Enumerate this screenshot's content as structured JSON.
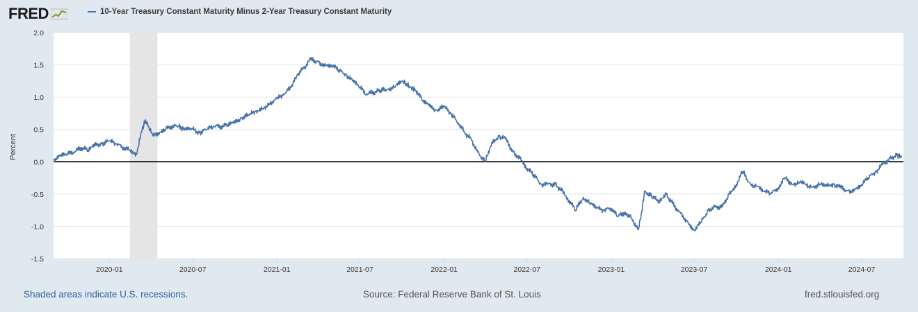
{
  "header": {
    "logo_text": "FRED",
    "series_title": "10-Year Treasury Constant Maturity Minus 2-Year Treasury Constant Maturity",
    "series_color": "#4572a7"
  },
  "footer": {
    "recession_note": "Shaded areas indicate U.S. recessions.",
    "source": "Source: Federal Reserve Bank of St. Louis",
    "site": "fred.stlouisfed.org"
  },
  "chart_data": {
    "type": "line",
    "title": "",
    "xlabel": "",
    "ylabel": "Percent",
    "ylim": [
      -1.5,
      2.0
    ],
    "yticks": [
      2.0,
      1.5,
      1.0,
      0.5,
      0.0,
      -0.5,
      -1.0,
      -1.5
    ],
    "ytick_labels": [
      "2.0",
      "1.5",
      "1.0",
      "0.5",
      "0.0",
      "-0.5",
      "-1.0",
      "-1.5"
    ],
    "xlim": [
      "2019-09-01",
      "2024-09-30"
    ],
    "xticks": [
      "2020-01-01",
      "2020-07-01",
      "2021-01-01",
      "2021-07-01",
      "2022-01-01",
      "2022-07-01",
      "2023-01-01",
      "2023-07-01",
      "2024-01-01",
      "2024-07-01"
    ],
    "xtick_labels": [
      "2020-01",
      "2020-07",
      "2021-01",
      "2021-07",
      "2022-01",
      "2022-07",
      "2023-01",
      "2023-07",
      "2024-01",
      "2024-07"
    ],
    "grid": "horizontal",
    "zero_line": true,
    "line_color": "#4572a7",
    "recession_shading": [
      {
        "start": "2020-02-15",
        "end": "2020-04-15"
      }
    ],
    "series": [
      {
        "x": [
          "2019-09-01",
          "2019-09-15",
          "2019-10-01",
          "2019-10-15",
          "2019-11-01",
          "2019-11-15",
          "2019-12-01",
          "2019-12-15",
          "2020-01-01",
          "2020-01-15",
          "2020-02-01",
          "2020-02-15",
          "2020-03-01",
          "2020-03-10",
          "2020-03-20",
          "2020-04-01",
          "2020-04-15",
          "2020-05-01",
          "2020-05-15",
          "2020-06-01",
          "2020-06-10",
          "2020-06-20",
          "2020-07-01",
          "2020-07-15",
          "2020-08-01",
          "2020-08-15",
          "2020-09-01",
          "2020-09-15",
          "2020-10-01",
          "2020-10-15",
          "2020-11-01",
          "2020-11-15",
          "2020-12-01",
          "2020-12-15",
          "2021-01-01",
          "2021-01-15",
          "2021-02-01",
          "2021-02-15",
          "2021-03-01",
          "2021-03-15",
          "2021-04-01",
          "2021-04-15",
          "2021-05-01",
          "2021-05-15",
          "2021-06-01",
          "2021-06-15",
          "2021-07-01",
          "2021-07-15",
          "2021-08-01",
          "2021-08-15",
          "2021-09-01",
          "2021-09-15",
          "2021-10-01",
          "2021-10-20",
          "2021-11-01",
          "2021-11-15",
          "2021-12-01",
          "2021-12-15",
          "2022-01-01",
          "2022-01-15",
          "2022-02-01",
          "2022-02-15",
          "2022-03-01",
          "2022-03-15",
          "2022-04-01",
          "2022-04-15",
          "2022-05-01",
          "2022-05-15",
          "2022-06-01",
          "2022-06-15",
          "2022-07-01",
          "2022-07-15",
          "2022-08-01",
          "2022-08-15",
          "2022-09-01",
          "2022-09-15",
          "2022-10-01",
          "2022-10-15",
          "2022-11-01",
          "2022-11-15",
          "2022-12-01",
          "2022-12-15",
          "2023-01-01",
          "2023-01-15",
          "2023-02-01",
          "2023-02-15",
          "2023-03-01",
          "2023-03-08",
          "2023-03-15",
          "2023-04-01",
          "2023-04-15",
          "2023-05-01",
          "2023-05-15",
          "2023-06-01",
          "2023-06-15",
          "2023-07-01",
          "2023-07-15",
          "2023-08-01",
          "2023-08-15",
          "2023-09-01",
          "2023-09-15",
          "2023-10-01",
          "2023-10-15",
          "2023-11-01",
          "2023-11-15",
          "2023-12-01",
          "2023-12-15",
          "2024-01-01",
          "2024-01-15",
          "2024-02-01",
          "2024-02-15",
          "2024-03-01",
          "2024-03-15",
          "2024-04-01",
          "2024-04-15",
          "2024-05-01",
          "2024-05-15",
          "2024-06-01",
          "2024-06-15",
          "2024-07-01",
          "2024-07-15",
          "2024-08-01",
          "2024-08-15",
          "2024-09-01",
          "2024-09-15",
          "2024-09-27"
        ],
        "values": [
          0.03,
          0.08,
          0.12,
          0.15,
          0.22,
          0.18,
          0.25,
          0.28,
          0.32,
          0.28,
          0.22,
          0.18,
          0.12,
          0.45,
          0.65,
          0.45,
          0.4,
          0.5,
          0.55,
          0.55,
          0.5,
          0.52,
          0.5,
          0.45,
          0.5,
          0.55,
          0.55,
          0.57,
          0.6,
          0.68,
          0.72,
          0.78,
          0.82,
          0.9,
          0.97,
          1.05,
          1.15,
          1.35,
          1.45,
          1.58,
          1.55,
          1.48,
          1.5,
          1.42,
          1.35,
          1.25,
          1.15,
          1.05,
          1.08,
          1.1,
          1.13,
          1.15,
          1.25,
          1.15,
          1.1,
          0.95,
          0.85,
          0.8,
          0.85,
          0.75,
          0.6,
          0.45,
          0.35,
          0.15,
          0.0,
          0.3,
          0.4,
          0.35,
          0.15,
          0.05,
          -0.1,
          -0.2,
          -0.35,
          -0.35,
          -0.35,
          -0.45,
          -0.6,
          -0.75,
          -0.55,
          -0.65,
          -0.72,
          -0.75,
          -0.72,
          -0.85,
          -0.78,
          -0.88,
          -1.05,
          -0.8,
          -0.45,
          -0.55,
          -0.6,
          -0.5,
          -0.65,
          -0.8,
          -0.92,
          -1.05,
          -0.95,
          -0.75,
          -0.7,
          -0.7,
          -0.5,
          -0.35,
          -0.15,
          -0.35,
          -0.38,
          -0.45,
          -0.5,
          -0.4,
          -0.25,
          -0.35,
          -0.32,
          -0.35,
          -0.4,
          -0.35,
          -0.35,
          -0.35,
          -0.4,
          -0.45,
          -0.45,
          -0.35,
          -0.25,
          -0.15,
          -0.05,
          0.05,
          0.1,
          0.08
        ]
      }
    ]
  }
}
